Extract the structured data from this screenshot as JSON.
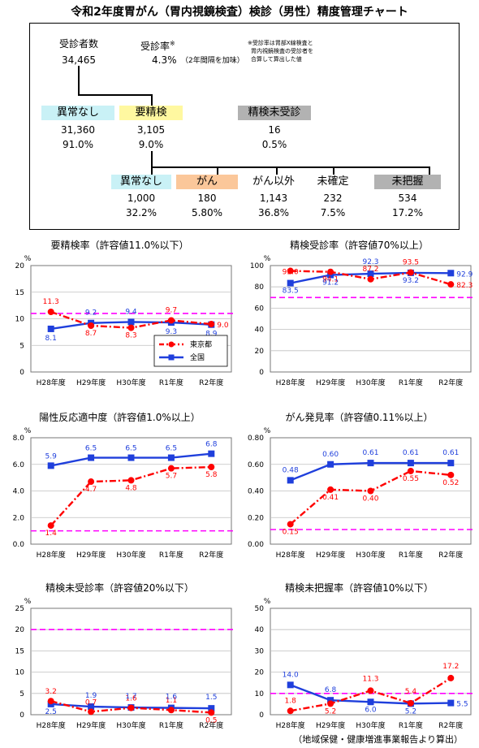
{
  "title": "令和2年度胃がん（胃内視鏡検査）検診（男性）精度管理チャート",
  "flow": {
    "examinees": {
      "label": "受診者数",
      "value": "34,465"
    },
    "rate": {
      "label": "受診率",
      "mark": "※",
      "value": "4.3%",
      "note": "（2年間隔を加味）"
    },
    "footnote": [
      "※受診率は胃部X線検査と",
      "胃内視鏡検査の受診者を",
      "合算して算出した値"
    ],
    "level1": [
      {
        "label": "異常なし",
        "count": "31,360",
        "pct": "91.0%",
        "color": "cyan"
      },
      {
        "label": "要精検",
        "count": "3,105",
        "pct": "9.0%",
        "color": "yellow"
      },
      {
        "label": "精検未受診",
        "count": "16",
        "pct": "0.5%",
        "color": "gray"
      }
    ],
    "level2": [
      {
        "label": "異常なし",
        "count": "1,000",
        "pct": "32.2%",
        "color": "cyan"
      },
      {
        "label": "がん",
        "count": "180",
        "pct": "5.80%",
        "color": "orange"
      },
      {
        "label": "がん以外",
        "count": "1,143",
        "pct": "36.8%",
        "color": "none"
      },
      {
        "label": "未確定",
        "count": "232",
        "pct": "7.5%",
        "color": "none"
      },
      {
        "label": "未把握",
        "count": "534",
        "pct": "17.2%",
        "color": "gray"
      }
    ]
  },
  "colors": {
    "tokyo": "#ff0000",
    "national": "#1f3fdc",
    "threshold": "#ff00ff"
  },
  "chart_data": [
    {
      "type": "line",
      "title": "要精検率（許容値11.0%以下）",
      "unit": "%",
      "categories": [
        "H28年度",
        "H29年度",
        "H30年度",
        "R1年度",
        "R2年度"
      ],
      "ylim": [
        0,
        20
      ],
      "yticks": [
        "0",
        "5",
        "10",
        "15",
        "20"
      ],
      "threshold": 11.0,
      "legend": [
        "東京都",
        "全国"
      ],
      "series": [
        {
          "name": "東京都",
          "values": [
            11.3,
            8.7,
            8.3,
            9.7,
            9.0
          ],
          "labels": [
            "11.3",
            "8.7",
            "8.3",
            "9.7",
            "9.0"
          ]
        },
        {
          "name": "全国",
          "values": [
            8.1,
            9.2,
            9.4,
            9.3,
            8.9
          ],
          "labels": [
            "8.1",
            "9.2",
            "9.4",
            "9.3",
            "8.9"
          ]
        }
      ]
    },
    {
      "type": "line",
      "title": "精検受診率（許容値70%以上）",
      "unit": "%",
      "categories": [
        "H28年度",
        "H29年度",
        "H30年度",
        "R1年度",
        "R2年度"
      ],
      "ylim": [
        0,
        100
      ],
      "yticks": [
        "0",
        "20",
        "40",
        "60",
        "80",
        "100"
      ],
      "threshold": 70,
      "series": [
        {
          "name": "東京都",
          "values": [
            95.0,
            94.1,
            87.2,
            93.5,
            82.3
          ],
          "labels": [
            "95.0",
            "94.1",
            "87.2",
            "93.5",
            "82.3"
          ]
        },
        {
          "name": "全国",
          "values": [
            83.5,
            91.2,
            92.3,
            93.2,
            92.9
          ],
          "labels": [
            "83.5",
            "91.2",
            "92.3",
            "93.2",
            "92.9"
          ]
        }
      ]
    },
    {
      "type": "line",
      "title": "陽性反応適中度（許容値1.0%以上）",
      "unit": "%",
      "categories": [
        "H28年度",
        "H29年度",
        "H30年度",
        "R1年度",
        "R2年度"
      ],
      "ylim": [
        0,
        8
      ],
      "yticks": [
        "0.0",
        "2.0",
        "4.0",
        "6.0",
        "8.0"
      ],
      "threshold": 1.0,
      "series": [
        {
          "name": "東京都",
          "values": [
            1.4,
            4.7,
            4.8,
            5.7,
            5.8
          ],
          "labels": [
            "1.4",
            "4.7",
            "4.8",
            "5.7",
            "5.8"
          ]
        },
        {
          "name": "全国",
          "values": [
            5.9,
            6.5,
            6.5,
            6.5,
            6.8
          ],
          "labels": [
            "5.9",
            "6.5",
            "6.5",
            "6.5",
            "6.8"
          ]
        }
      ]
    },
    {
      "type": "line",
      "title": "がん発見率（許容値0.11%以上）",
      "unit": "%",
      "categories": [
        "H28年度",
        "H29年度",
        "H30年度",
        "R1年度",
        "R2年度"
      ],
      "ylim": [
        0,
        0.8
      ],
      "yticks": [
        "0.00",
        "0.20",
        "0.40",
        "0.60",
        "0.80"
      ],
      "threshold": 0.11,
      "series": [
        {
          "name": "東京都",
          "values": [
            0.15,
            0.41,
            0.4,
            0.55,
            0.52
          ],
          "labels": [
            "0.15",
            "0.41",
            "0.40",
            "0.55",
            "0.52"
          ]
        },
        {
          "name": "全国",
          "values": [
            0.48,
            0.6,
            0.61,
            0.61,
            0.61
          ],
          "labels": [
            "0.48",
            "0.60",
            "0.61",
            "0.61",
            "0.61"
          ]
        }
      ]
    },
    {
      "type": "line",
      "title": "精検未受診率（許容値20%以下）",
      "unit": "%",
      "categories": [
        "H28年度",
        "H29年度",
        "H30年度",
        "R1年度",
        "R2年度"
      ],
      "ylim": [
        0,
        25
      ],
      "yticks": [
        "0",
        "5",
        "10",
        "15",
        "20",
        "25"
      ],
      "threshold": 20,
      "series": [
        {
          "name": "東京都",
          "values": [
            3.2,
            0.7,
            1.6,
            1.1,
            0.5
          ],
          "labels": [
            "3.2",
            "0.7",
            "1.6",
            "1.1",
            "0.5"
          ]
        },
        {
          "name": "全国",
          "values": [
            2.5,
            1.9,
            1.7,
            1.6,
            1.5
          ],
          "labels": [
            "2.5",
            "1.9",
            "1.7",
            "1.6",
            "1.5"
          ]
        }
      ]
    },
    {
      "type": "line",
      "title": "精検未把握率（許容値10%以下）",
      "unit": "%",
      "categories": [
        "H28年度",
        "H29年度",
        "H30年度",
        "R1年度",
        "R2年度"
      ],
      "ylim": [
        0,
        50
      ],
      "yticks": [
        "0",
        "10",
        "20",
        "30",
        "40",
        "50"
      ],
      "threshold": 10,
      "series": [
        {
          "name": "東京都",
          "values": [
            1.8,
            5.2,
            11.3,
            5.4,
            17.2
          ],
          "labels": [
            "1.8",
            "5.2",
            "11.3",
            "5.4",
            "17.2"
          ]
        },
        {
          "name": "全国",
          "values": [
            14.0,
            6.8,
            6.0,
            5.2,
            5.5
          ],
          "labels": [
            "14.0",
            "6.8",
            "6.0",
            "5.2",
            "5.5"
          ]
        }
      ]
    }
  ],
  "footer": "（地域保健・健康増進事業報告より算出）"
}
